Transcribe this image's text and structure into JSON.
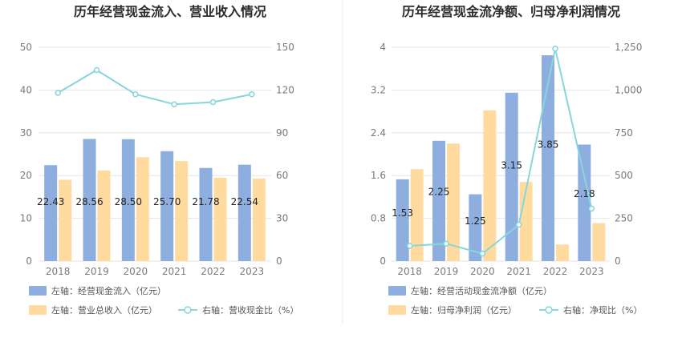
{
  "colors": {
    "bar_primary": "#8eaedf",
    "bar_secondary": "#ffdba0",
    "line": "#86d6dc",
    "grid": "#e6e6e6",
    "divider": "#eeeeee"
  },
  "chart_data": [
    {
      "type": "bar",
      "title": "历年经营现金流入、营业收入情况",
      "categories": [
        "2018",
        "2019",
        "2020",
        "2021",
        "2022",
        "2023"
      ],
      "left_axis": {
        "ticks": [
          "0",
          "10",
          "20",
          "30",
          "40",
          "50"
        ],
        "ylim": [
          0,
          50
        ]
      },
      "right_axis": {
        "ticks": [
          "0",
          "30",
          "60",
          "90",
          "120",
          "150"
        ],
        "ylim": [
          0,
          150
        ]
      },
      "series": [
        {
          "name": "左轴：经营现金流入（亿元）",
          "axis": "left",
          "kind": "bar",
          "values": [
            22.43,
            28.56,
            28.5,
            25.7,
            21.78,
            22.54
          ],
          "labels": [
            "22.43",
            "28.56",
            "28.50",
            "25.70",
            "21.78",
            "22.54"
          ]
        },
        {
          "name": "左轴：营业总收入（亿元）",
          "axis": "left",
          "kind": "bar",
          "values": [
            19.0,
            21.2,
            24.3,
            23.4,
            19.5,
            19.3
          ]
        },
        {
          "name": "右轴：营收现金比（%）",
          "axis": "right",
          "kind": "line",
          "values": [
            118,
            134,
            117,
            110,
            111.5,
            117
          ]
        }
      ]
    },
    {
      "type": "bar",
      "title": "历年经营现金流净额、归母净利润情况",
      "categories": [
        "2018",
        "2019",
        "2020",
        "2021",
        "2022",
        "2023"
      ],
      "left_axis": {
        "ticks": [
          "0",
          "0.8",
          "1.6",
          "2.4",
          "3.2",
          "4"
        ],
        "ylim": [
          0,
          4
        ]
      },
      "right_axis": {
        "ticks": [
          "0",
          "250",
          "500",
          "750",
          "1,000",
          "1,250"
        ],
        "ylim": [
          0,
          1250
        ]
      },
      "series": [
        {
          "name": "左轴：经营活动现金流净额（亿元）",
          "axis": "left",
          "kind": "bar",
          "values": [
            1.53,
            2.25,
            1.25,
            3.15,
            3.85,
            2.18
          ],
          "labels": [
            "1.53",
            "2.25",
            "1.25",
            "3.15",
            "3.85",
            "2.18"
          ]
        },
        {
          "name": "左轴：归母净利润（亿元）",
          "axis": "left",
          "kind": "bar",
          "values": [
            1.72,
            2.2,
            2.82,
            1.48,
            0.31,
            0.71
          ]
        },
        {
          "name": "右轴：净现比（%）",
          "axis": "right",
          "kind": "line",
          "values": [
            89,
            102,
            44,
            213,
            1242,
            307
          ]
        }
      ]
    }
  ]
}
